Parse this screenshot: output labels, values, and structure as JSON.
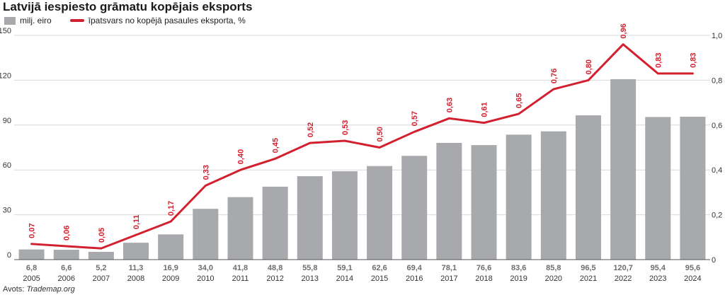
{
  "title": "Latvijā iespiesto grāmatu kopējais eksports",
  "legend": {
    "bars": "milj. eiro",
    "line": "īpatsvars no kopējā pasaules eksporta, %"
  },
  "source": {
    "prefix": "Avots: ",
    "name": "Trademap.org"
  },
  "colors": {
    "bar": "#a7a9ac",
    "line": "#d3202f",
    "grid": "#d9d9d9"
  },
  "chart_data": {
    "type": "bar",
    "title": "Latvijā iespiesto grāmatu kopējais eksports",
    "categories": [
      "2005",
      "2006",
      "2007",
      "2008",
      "2009",
      "2010",
      "2011",
      "2012",
      "2013",
      "2014",
      "2015",
      "2016",
      "2017",
      "2018",
      "2019",
      "2020",
      "2021",
      "2022",
      "2023",
      "2024"
    ],
    "series": [
      {
        "name": "milj. eiro",
        "type": "bar",
        "axis": "left",
        "values": [
          6.8,
          6.6,
          5.2,
          11.3,
          16.9,
          34.0,
          41.8,
          48.8,
          55.8,
          59.1,
          62.6,
          69.4,
          78.1,
          76.6,
          83.6,
          85.8,
          96.5,
          120.7,
          95.4,
          95.6
        ],
        "labels": [
          "6,8",
          "6,6",
          "5,2",
          "11,3",
          "16,9",
          "34,0",
          "41,8",
          "48,8",
          "55,8",
          "59,1",
          "62,6",
          "69,4",
          "78,1",
          "76,6",
          "83,6",
          "85,8",
          "96,5",
          "120,7",
          "95,4",
          "95,6"
        ]
      },
      {
        "name": "īpatsvars no kopējā pasaules eksporta, %",
        "type": "line",
        "axis": "right",
        "values": [
          0.07,
          0.06,
          0.05,
          0.11,
          0.17,
          0.33,
          0.4,
          0.45,
          0.52,
          0.53,
          0.5,
          0.57,
          0.63,
          0.61,
          0.65,
          0.76,
          0.8,
          0.96,
          0.83,
          0.83
        ],
        "labels": [
          "0,07",
          "0,06",
          "0,05",
          "0,11",
          "0,17",
          "0,33",
          "0,40",
          "0,45",
          "0,52",
          "0,53",
          "0,50",
          "0,57",
          "0,63",
          "0,61",
          "0,65",
          "0,76",
          "0,80",
          "0,96",
          "0,83",
          "0,83"
        ]
      }
    ],
    "y_left": {
      "lim": [
        0,
        150
      ],
      "ticks": [
        0,
        30,
        60,
        90,
        120,
        150
      ],
      "tick_labels": [
        "0",
        "30",
        "60",
        "90",
        "120",
        "150"
      ]
    },
    "y_right": {
      "lim": [
        0,
        1.0
      ],
      "ticks": [
        0,
        0.2,
        0.4,
        0.6,
        0.8,
        1.0
      ],
      "tick_labels": [
        "0",
        "0,2",
        "0,4",
        "0,6",
        "0,8",
        "1,0"
      ]
    },
    "grid": true,
    "legend_position": "top-left"
  }
}
